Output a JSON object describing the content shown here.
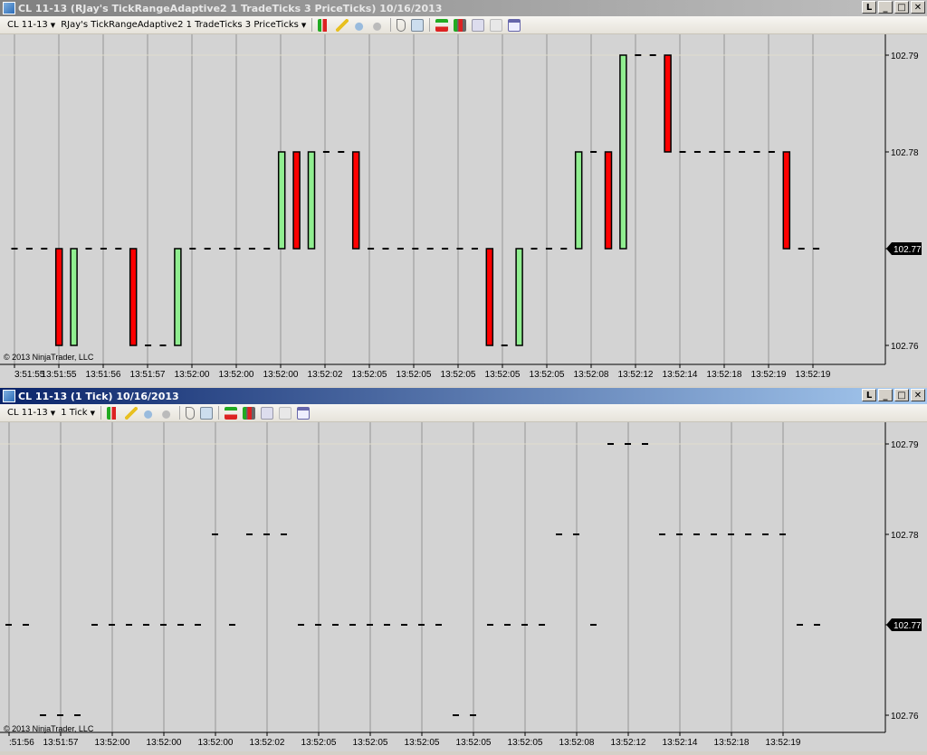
{
  "top_window": {
    "title": "CL 11-13 (RJay's TickRangeAdaptive2 1 TradeTicks  3 PriceTicks)  10/16/2013",
    "toolbar": {
      "instrument": "CL 11-13",
      "period": "RJay's TickRangeAdaptive2 1 TradeTicks  3 PriceTicks"
    },
    "copyright": "© 2013 NinjaTrader, LLC",
    "last_price": "102.77",
    "buttons": {
      "link": "L",
      "minimize": "_",
      "maximize": "□",
      "close": "✕"
    }
  },
  "bottom_window": {
    "title": "CL 11-13 (1 Tick)  10/16/2013",
    "toolbar": {
      "instrument": "CL 11-13",
      "period": "1 Tick"
    },
    "copyright": "© 2013 NinjaTrader, LLC",
    "last_price": "102.77",
    "buttons": {
      "link": "L",
      "minimize": "_",
      "maximize": "□",
      "close": "✕"
    }
  },
  "toolbar_icons": [
    "chart-style-icon",
    "pencil-icon",
    "zoom-in-icon",
    "zoom-out-icon",
    "cursor-icon",
    "search-icon",
    "order-icon",
    "bars-icon",
    "indicator-icon",
    "dollar-icon",
    "properties-icon"
  ],
  "colors": {
    "up": "#90ee90",
    "down": "#ff0000",
    "background": "#d3d3d3",
    "active_title": "#0a246a"
  },
  "chart_data": [
    {
      "type": "candlestick",
      "yticks": [
        "102.79",
        "102.78",
        "102.77",
        "102.76"
      ],
      "ylim": [
        102.755,
        102.793
      ],
      "xticks": [
        "3:51:55",
        "13:51:55",
        "13:51:56",
        "13:51:57",
        "13:52:00",
        "13:52:00",
        "13:52:00",
        "13:52:02",
        "13:52:05",
        "13:52:05",
        "13:52:05",
        "13:52:05",
        "13:52:05",
        "13:52:08",
        "13:52:12",
        "13:52:14",
        "13:52:18",
        "13:52:19",
        "13:52:19"
      ],
      "open": [
        102.77,
        102.77,
        102.77,
        102.77,
        102.76,
        102.77,
        102.77,
        102.77,
        102.77,
        102.76,
        102.76,
        102.76,
        102.77,
        102.77,
        102.77,
        102.77,
        102.77,
        102.77,
        102.77,
        102.78,
        102.77,
        102.78,
        102.78,
        102.78,
        102.77,
        102.77,
        102.77,
        102.77,
        102.77,
        102.77,
        102.77,
        102.77,
        102.77,
        102.76,
        102.76,
        102.77,
        102.77,
        102.77,
        102.77,
        102.78,
        102.78,
        102.77,
        102.79,
        102.79,
        102.79,
        102.78,
        102.78,
        102.78,
        102.78,
        102.78,
        102.78,
        102.78,
        102.78,
        102.77,
        102.77
      ],
      "close": [
        102.77,
        102.77,
        102.77,
        102.76,
        102.77,
        102.77,
        102.77,
        102.77,
        102.76,
        102.76,
        102.76,
        102.77,
        102.77,
        102.77,
        102.77,
        102.77,
        102.77,
        102.77,
        102.78,
        102.77,
        102.78,
        102.78,
        102.78,
        102.77,
        102.77,
        102.77,
        102.77,
        102.77,
        102.77,
        102.77,
        102.77,
        102.77,
        102.76,
        102.76,
        102.77,
        102.77,
        102.77,
        102.77,
        102.78,
        102.78,
        102.77,
        102.79,
        102.79,
        102.79,
        102.78,
        102.78,
        102.78,
        102.78,
        102.78,
        102.78,
        102.78,
        102.78,
        102.77,
        102.77,
        102.77
      ]
    },
    {
      "type": "candlestick",
      "yticks": [
        "102.79",
        "102.78",
        "102.77",
        "102.76"
      ],
      "ylim": [
        102.755,
        102.7925
      ],
      "xticks": [
        ":51:56",
        "13:51:57",
        "13:52:00",
        "13:52:00",
        "13:52:00",
        "13:52:02",
        "13:52:05",
        "13:52:05",
        "13:52:05",
        "13:52:05",
        "13:52:05",
        "13:52:08",
        "13:52:12",
        "13:52:14",
        "13:52:18",
        "13:52:19"
      ],
      "close": [
        102.77,
        102.77,
        102.76,
        102.76,
        102.76,
        102.77,
        102.77,
        102.77,
        102.77,
        102.77,
        102.77,
        102.77,
        102.78,
        102.77,
        102.78,
        102.78,
        102.78,
        102.77,
        102.77,
        102.77,
        102.77,
        102.77,
        102.77,
        102.77,
        102.77,
        102.77,
        102.76,
        102.76,
        102.77,
        102.77,
        102.77,
        102.77,
        102.78,
        102.78,
        102.77,
        102.79,
        102.79,
        102.79,
        102.78,
        102.78,
        102.78,
        102.78,
        102.78,
        102.78,
        102.78,
        102.78,
        102.77,
        102.77
      ]
    }
  ]
}
